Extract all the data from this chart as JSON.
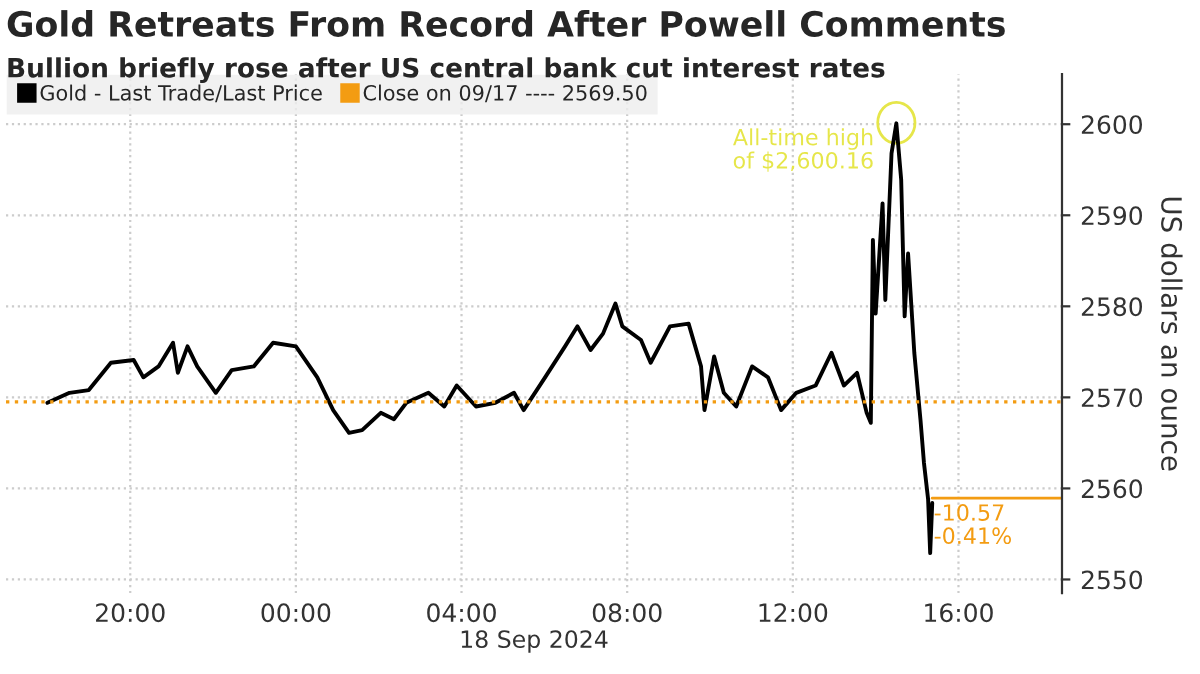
{
  "chart_data": {
    "type": "line",
    "title": "Gold Retreats From Record After Powell Comments",
    "subtitle": "Bullion briefly rose after US central bank cut interest rates",
    "xlabel": "18 Sep 2024",
    "ylabel": "US dollars an ounce",
    "series": [
      {
        "name": "Gold - Last Trade/Last Price",
        "color": "#000000",
        "x": [
          "2024-09-17T18:00",
          "2024-09-17T18:32",
          "2024-09-17T19:00",
          "2024-09-17T19:32",
          "2024-09-17T20:05",
          "2024-09-17T20:19",
          "2024-09-17T20:41",
          "2024-09-17T21:02",
          "2024-09-17T21:09",
          "2024-09-17T21:23",
          "2024-09-17T21:37",
          "2024-09-17T22:04",
          "2024-09-17T22:27",
          "2024-09-17T22:59",
          "2024-09-17T23:27",
          "2024-09-18T00:00",
          "2024-09-18T00:31",
          "2024-09-18T00:54",
          "2024-09-18T01:17",
          "2024-09-18T01:36",
          "2024-09-18T02:03",
          "2024-09-18T02:22",
          "2024-09-18T02:40",
          "2024-09-18T03:12",
          "2024-09-18T03:35",
          "2024-09-18T03:53",
          "2024-09-18T04:21",
          "2024-09-18T04:49",
          "2024-09-18T05:16",
          "2024-09-18T05:30",
          "2024-09-18T06:02",
          "2024-09-18T06:30",
          "2024-09-18T06:48",
          "2024-09-18T07:07",
          "2024-09-18T07:25",
          "2024-09-18T07:43",
          "2024-09-18T07:53",
          "2024-09-18T08:20",
          "2024-09-18T08:34",
          "2024-09-18T09:02",
          "2024-09-18T09:29",
          "2024-09-18T09:47",
          "2024-09-18T09:52",
          "2024-09-18T10:06",
          "2024-09-18T10:20",
          "2024-09-18T10:38",
          "2024-09-18T11:01",
          "2024-09-18T11:24",
          "2024-09-18T11:43",
          "2024-09-18T12:05",
          "2024-09-18T12:33",
          "2024-09-18T12:56",
          "2024-09-18T13:14",
          "2024-09-18T13:33",
          "2024-09-18T13:47",
          "2024-09-18T13:53",
          "2024-09-18T13:56",
          "2024-09-18T14:00",
          "2024-09-18T14:10",
          "2024-09-18T14:14",
          "2024-09-18T14:23",
          "2024-09-18T14:30",
          "2024-09-18T14:37",
          "2024-09-18T14:42",
          "2024-09-18T14:47",
          "2024-09-18T14:56",
          "2024-09-18T15:05",
          "2024-09-18T15:10",
          "2024-09-18T15:16",
          "2024-09-18T15:19",
          "2024-09-18T15:22"
        ],
        "values": [
          2569.4,
          2570.5,
          2570.8,
          2573.8,
          2574.1,
          2572.2,
          2573.4,
          2576.0,
          2572.7,
          2575.6,
          2573.4,
          2570.5,
          2573.0,
          2573.4,
          2576.0,
          2575.6,
          2572.2,
          2568.6,
          2566.1,
          2566.4,
          2568.3,
          2567.6,
          2569.4,
          2570.5,
          2569.0,
          2571.3,
          2569.0,
          2569.4,
          2570.5,
          2568.6,
          2572.3,
          2575.6,
          2577.8,
          2575.2,
          2577.0,
          2580.3,
          2577.8,
          2576.3,
          2573.8,
          2577.8,
          2578.1,
          2573.4,
          2568.6,
          2574.5,
          2570.5,
          2569.0,
          2573.4,
          2572.2,
          2568.6,
          2570.5,
          2571.3,
          2574.9,
          2571.3,
          2572.7,
          2568.3,
          2567.2,
          2587.3,
          2579.2,
          2591.3,
          2580.7,
          2596.8,
          2600.1,
          2593.9,
          2578.9,
          2585.8,
          2574.9,
          2567.5,
          2562.8,
          2558.8,
          2552.9,
          2558.4
        ]
      }
    ],
    "ref_lines": [
      {
        "axis": "y",
        "value": 2569.5,
        "label": "Close on 09/17 ---- 2569.50",
        "color": "#f39c12",
        "line_style": "dotted"
      },
      {
        "axis": "y",
        "value": 2558.93,
        "color": "#f39c12",
        "line_style": "solid"
      }
    ],
    "annotations": [
      {
        "text": "All-time high\nof $2,600.16",
        "x": "2024-09-18T14:30",
        "y": 2600.16
      },
      {
        "text": "-10.57\n-0.41%",
        "x": "2024-09-18T15:24",
        "y": 2558.93
      }
    ],
    "xlim": [
      "2024-09-17T17:00",
      "2024-09-18T18:30"
    ],
    "xticks": [
      {
        "value": "2024-09-17T20:00",
        "label": "20:00"
      },
      {
        "value": "2024-09-18T00:00",
        "label": "00:00"
      },
      {
        "value": "2024-09-18T04:00",
        "label": "04:00"
      },
      {
        "value": "2024-09-18T08:00",
        "label": "08:00"
      },
      {
        "value": "2024-09-18T12:00",
        "label": "12:00"
      },
      {
        "value": "2024-09-18T16:00",
        "label": "16:00"
      }
    ],
    "ylim": [
      2548.5,
      2605.5
    ],
    "yticks": [
      2550,
      2560,
      2570,
      2580,
      2590,
      2600
    ],
    "grid": true,
    "legend": "top left",
    "line_style": "solid",
    "marker": "none"
  }
}
